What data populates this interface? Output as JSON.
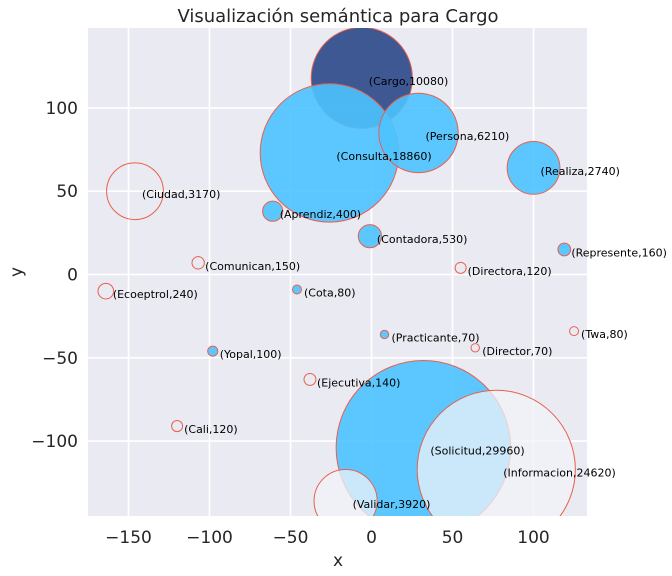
{
  "chart_data": {
    "type": "scatter",
    "title": "Visualización semántica para Cargo",
    "xlabel": "x",
    "ylabel": "y",
    "xlim": [
      -175,
      133
    ],
    "ylim": [
      -145,
      148
    ],
    "xticks": [
      -150,
      -100,
      -50,
      0,
      50,
      100
    ],
    "yticks": [
      -100,
      -50,
      0,
      50,
      100
    ],
    "xtick_labels": [
      "−150",
      "−100",
      "−50",
      "0",
      "50",
      "100"
    ],
    "ytick_labels": [
      "−100",
      "−50",
      "0",
      "50",
      "100"
    ],
    "grid": true,
    "colors": {
      "background": "#eaeaf2",
      "grid": "#ffffff",
      "edge": "#e8604c",
      "filled": "#4dc3ff",
      "highlight": "#34508c"
    },
    "points": [
      {
        "label": "(Cargo,10080)",
        "word": "Cargo",
        "count": 10080,
        "x": -6,
        "y": 118,
        "style": "highlight"
      },
      {
        "label": "(Consulta,18860)",
        "word": "Consulta",
        "count": 18860,
        "x": -26,
        "y": 73,
        "style": "filled"
      },
      {
        "label": "(Persona,6210)",
        "word": "Persona",
        "count": 6210,
        "x": 29,
        "y": 85,
        "style": "filled"
      },
      {
        "label": "(Realiza,2740)",
        "word": "Realiza",
        "count": 2740,
        "x": 100,
        "y": 64,
        "style": "filled"
      },
      {
        "label": "(Ciudad,3170)",
        "word": "Ciudad",
        "count": 3170,
        "x": -146,
        "y": 50,
        "style": "empty"
      },
      {
        "label": "(Aprendiz,400)",
        "word": "Aprendiz",
        "count": 400,
        "x": -61,
        "y": 38,
        "style": "filled"
      },
      {
        "label": "(Contadora,530)",
        "word": "Contadora",
        "count": 530,
        "x": -1,
        "y": 23,
        "style": "filled"
      },
      {
        "label": "(Represente,160)",
        "word": "Represente",
        "count": 160,
        "x": 119,
        "y": 15,
        "style": "filled"
      },
      {
        "label": "(Comunican,150)",
        "word": "Comunican",
        "count": 150,
        "x": -107,
        "y": 7,
        "style": "empty"
      },
      {
        "label": "(Directora,120)",
        "word": "Directora",
        "count": 120,
        "x": 55,
        "y": 4,
        "style": "empty"
      },
      {
        "label": "(Ecoeptrol,240)",
        "word": "Ecoeptrol",
        "count": 240,
        "x": -164,
        "y": -10,
        "style": "empty"
      },
      {
        "label": "(Cota,80)",
        "word": "Cota",
        "count": 80,
        "x": -46,
        "y": -9,
        "style": "filled"
      },
      {
        "label": "(Practicante,70)",
        "word": "Practicante",
        "count": 70,
        "x": 8,
        "y": -36,
        "style": "filled"
      },
      {
        "label": "(Twa,80)",
        "word": "Twa",
        "count": 80,
        "x": 125,
        "y": -34,
        "style": "empty"
      },
      {
        "label": "(Director,70)",
        "word": "Director",
        "count": 70,
        "x": 64,
        "y": -44,
        "style": "empty"
      },
      {
        "label": "(Yopal,100)",
        "word": "Yopal",
        "count": 100,
        "x": -98,
        "y": -46,
        "style": "filled"
      },
      {
        "label": "(Ejecutiva,140)",
        "word": "Ejecutiva",
        "count": 140,
        "x": -38,
        "y": -63,
        "style": "empty"
      },
      {
        "label": "(Cali,120)",
        "word": "Cali",
        "count": 120,
        "x": -120,
        "y": -91,
        "style": "empty"
      },
      {
        "label": "(Solicitud,29960)",
        "word": "Solicitud",
        "count": 29960,
        "x": 32,
        "y": -104,
        "style": "filled"
      },
      {
        "label": "(Informacion,24620)",
        "word": "Informacion",
        "count": 24620,
        "x": 77,
        "y": -117,
        "style": "pale"
      },
      {
        "label": "(Validar,3920)",
        "word": "Validar",
        "count": 3920,
        "x": -16,
        "y": -136,
        "style": "pale"
      }
    ]
  }
}
